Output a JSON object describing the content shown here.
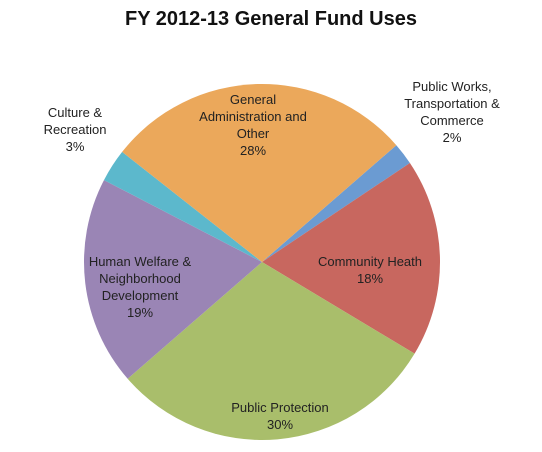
{
  "chart_data": {
    "type": "pie",
    "title": "FY 2012-13 General Fund Uses",
    "categories": [
      "Public Works, Transportation & Commerce",
      "Community Heath",
      "Public Protection",
      "Human Welfare & Neighborhood Development",
      "Culture & Recreation",
      "General Administration and Other"
    ],
    "values": [
      2,
      18,
      30,
      19,
      3,
      28
    ],
    "value_labels": [
      "2%",
      "18%",
      "30%",
      "19%",
      "3%",
      "28%"
    ],
    "colors": [
      "#6b9bd2",
      "#c8675f",
      "#a9be6b",
      "#9a85b5",
      "#5cb8cc",
      "#eba85b"
    ]
  }
}
